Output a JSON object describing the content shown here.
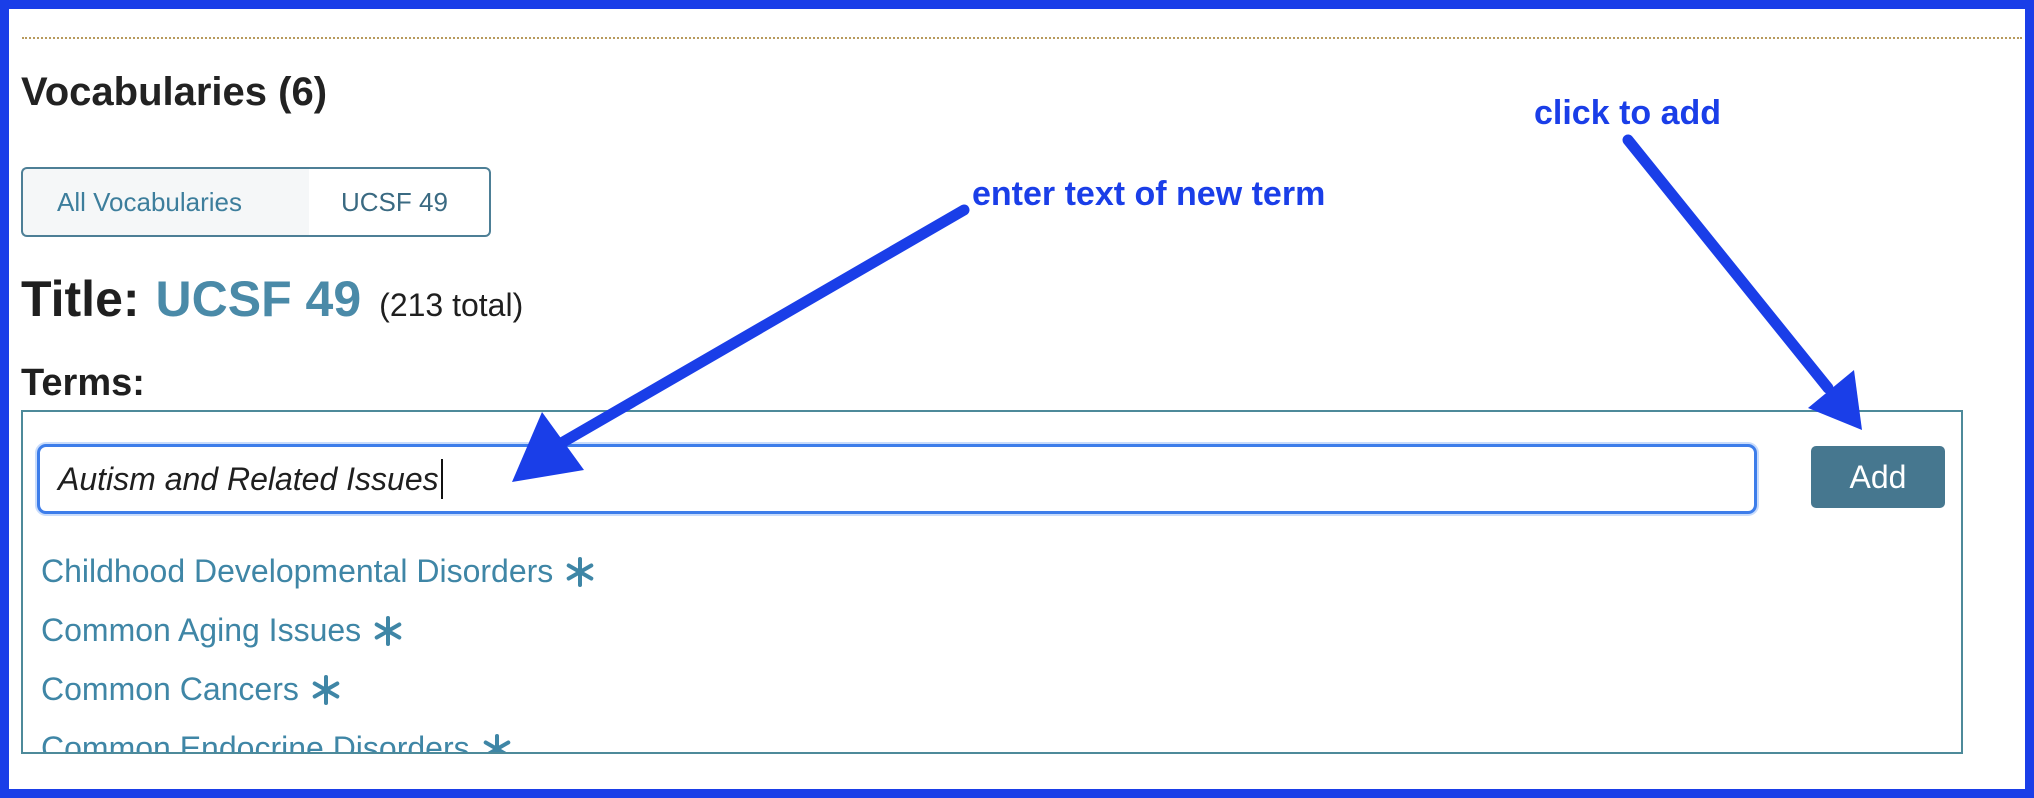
{
  "header": {
    "vocabularies_heading": "Vocabularies (6)"
  },
  "breadcrumb": {
    "all_label": "All Vocabularies",
    "current_label": "UCSF 49"
  },
  "title": {
    "label": "Title:",
    "value": "UCSF 49",
    "total": "(213 total)"
  },
  "terms": {
    "label": "Terms:",
    "input_value": "Autism and Related Issues",
    "add_label": "Add",
    "items": [
      {
        "label": "Childhood Developmental Disorders",
        "icon": "asterisk-icon"
      },
      {
        "label": "Common Aging Issues",
        "icon": "asterisk-icon"
      },
      {
        "label": "Common Cancers",
        "icon": "asterisk-icon"
      },
      {
        "label": "Common Endocrine Disorders",
        "icon": "asterisk-icon"
      }
    ]
  },
  "annotations": {
    "enter_text": "enter text of new term",
    "click_to_add": "click to add"
  },
  "colors": {
    "annotation_blue": "#1a3ee8",
    "link_teal": "#3f86a6",
    "button_bg": "#46778f"
  }
}
